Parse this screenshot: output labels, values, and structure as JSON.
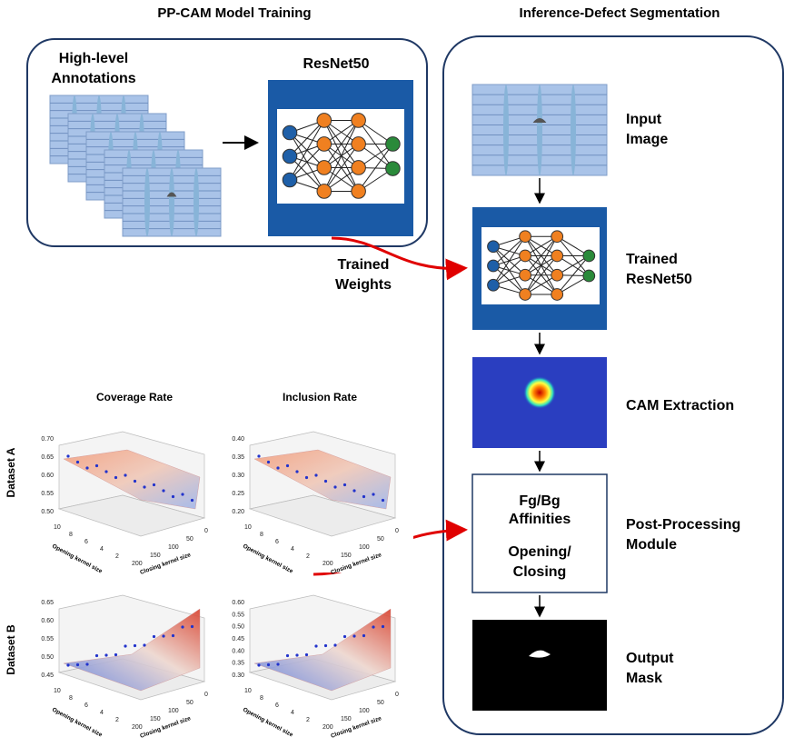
{
  "header": {
    "left_title": "PP-CAM Model Training",
    "right_title": "Inference-Defect Segmentation"
  },
  "training": {
    "annotations": [
      "High-level",
      "Annotations"
    ],
    "model": "ResNet50",
    "weights": [
      "Trained",
      "Weights"
    ]
  },
  "pipeline": {
    "steps": [
      {
        "label": [
          "Input",
          "Image"
        ]
      },
      {
        "label": [
          "Trained",
          "ResNet50"
        ]
      },
      {
        "label": [
          "CAM Extraction"
        ]
      },
      {
        "label": [
          "Post-Processing",
          " Module"
        ],
        "box_text": [
          "Fg/Bg",
          "Affinities",
          "Opening/",
          "Closing"
        ]
      },
      {
        "label": [
          "Output",
          "Mask"
        ]
      }
    ]
  },
  "plots": {
    "columns": [
      "Coverage Rate",
      "Inclusion Rate"
    ],
    "rows": [
      "Dataset A",
      "Dataset B"
    ],
    "opening_label": "Opening kernel size",
    "closing_label": "Closing kernel size",
    "opening_ticks": [
      "10",
      "8",
      "6",
      "4",
      "2"
    ],
    "closing_ticks": [
      "200",
      "150",
      "100",
      "50",
      "0"
    ],
    "z_ticks": [
      [
        "0.70",
        "0.65",
        "0.60",
        "0.55",
        "0.50"
      ],
      [
        "0.40",
        "0.35",
        "0.30",
        "0.25",
        "0.20"
      ],
      [
        "0.65",
        "0.60",
        "0.55",
        "0.50",
        "0.45"
      ],
      [
        "0.60",
        "0.55",
        "0.50",
        "0.45",
        "0.40",
        "0.35",
        "0.30"
      ]
    ]
  }
}
